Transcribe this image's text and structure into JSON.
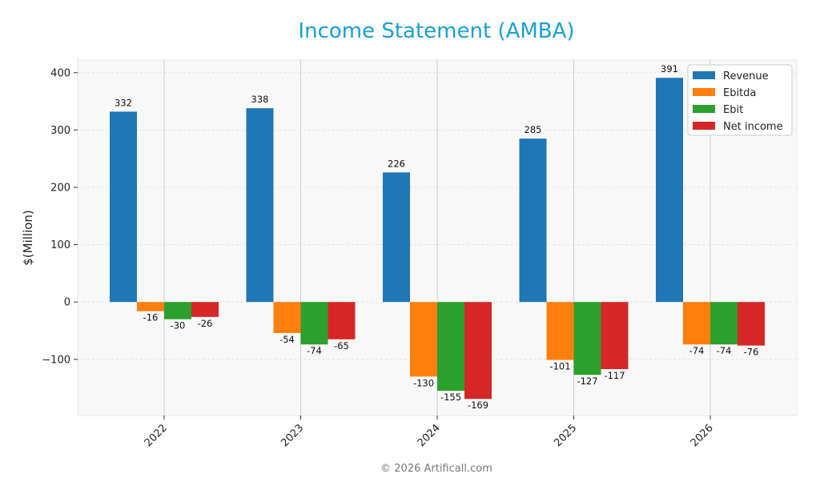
{
  "chart_data": {
    "type": "bar",
    "title": "Income Statement (AMBA)",
    "ylabel": "$(Million)",
    "xlabel": "",
    "categories": [
      "2022",
      "2023",
      "2024",
      "2025",
      "2026"
    ],
    "ylim": [
      -198,
      422
    ],
    "yticks": [
      -100,
      0,
      100,
      200,
      300,
      400
    ],
    "ytick_labels": [
      "−100",
      "0",
      "100",
      "200",
      "300",
      "400"
    ],
    "grid": true,
    "legend_position": "top-right",
    "series": [
      {
        "name": "Revenue",
        "color": "#1f77b4",
        "values": [
          332,
          338,
          226,
          285,
          391
        ]
      },
      {
        "name": "Ebitda",
        "color": "#ff7f0e",
        "values": [
          -16,
          -54,
          -130,
          -101,
          -74
        ]
      },
      {
        "name": "Ebit",
        "color": "#2ca02c",
        "values": [
          -30,
          -74,
          -155,
          -127,
          -74
        ]
      },
      {
        "name": "Net income",
        "color": "#d62728",
        "values": [
          -26,
          -65,
          -169,
          -117,
          -76
        ]
      }
    ]
  },
  "footer": {
    "copyright": "© 2026 Artificall.com"
  }
}
